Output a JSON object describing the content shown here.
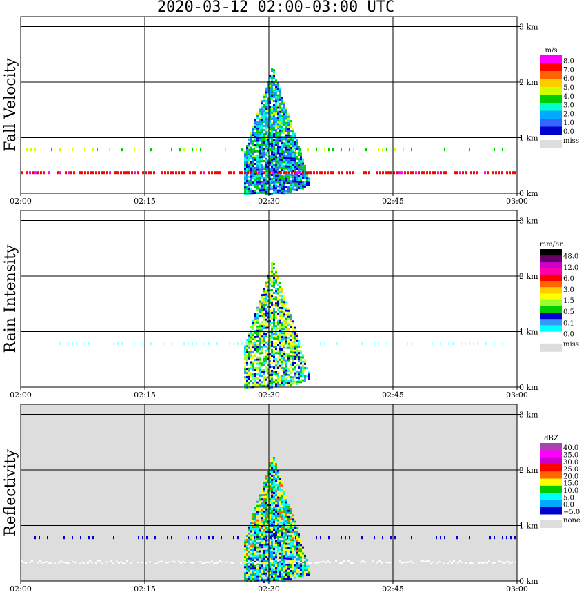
{
  "title": "2020-03-12   02:00-03:00 UTC",
  "x_tick_labels": [
    "02:00",
    "02:15",
    "02:30",
    "02:45",
    "03:00"
  ],
  "y_tick_labels": [
    "0 km",
    "1 km",
    "2 km",
    "3 km"
  ],
  "chart_data": [
    {
      "type": "heatmap",
      "ylabel": "Fall Velocity",
      "xlim": [
        "02:00",
        "03:00"
      ],
      "ylim_km": [
        0,
        3
      ],
      "grid": true,
      "background": "#ffffff",
      "colorbar": {
        "unit": "m/s",
        "labels": [
          "8.0",
          "7.0",
          "6.0",
          "5.0",
          "4.0",
          "3.0",
          "2.0",
          "1.0",
          "0.0"
        ],
        "colors": [
          "#ff00ff",
          "#ff0000",
          "#ff6600",
          "#ffcc00",
          "#ccff00",
          "#00cc00",
          "#00ffcc",
          "#00aaff",
          "#3366ff",
          "#0000cc"
        ],
        "missing_label": "miss",
        "missing_color": "#dddddd"
      },
      "features": [
        {
          "name": "precipitation-echo",
          "start": "02:27",
          "end": "02:35",
          "top_km": 2.3,
          "dominant_range": "1.0-3.0"
        },
        {
          "name": "interference-line",
          "height_km": 0.37,
          "value": "7.0-8.0"
        },
        {
          "name": "sparse-echo-line",
          "height_km": 0.78,
          "value": "3.0-5.0"
        }
      ]
    },
    {
      "type": "heatmap",
      "ylabel": "Rain Intensity",
      "xlim": [
        "02:00",
        "03:00"
      ],
      "ylim_km": [
        0,
        3
      ],
      "grid": true,
      "background": "#ffffff",
      "colorbar": {
        "unit": "mm/hr",
        "labels": [
          "48.0",
          "12.0",
          "6.0",
          "3.0",
          "1.5",
          "0.5",
          "0.1",
          "0.0"
        ],
        "colors": [
          "#000000",
          "#660066",
          "#cc00cc",
          "#ff00aa",
          "#ff0000",
          "#ff6600",
          "#ffcc00",
          "#ffff00",
          "#99ff33",
          "#00cc00",
          "#0000cc",
          "#3399ff",
          "#00ffff",
          "#ffffff"
        ],
        "missing_label": "miss",
        "missing_color": "#dddddd"
      },
      "features": [
        {
          "name": "precipitation-echo",
          "start": "02:27",
          "end": "02:35",
          "top_km": 2.3,
          "dominant_range": "0.1-0.5"
        },
        {
          "name": "sparse-echo-line",
          "height_km": 0.78,
          "value": "0.1"
        }
      ]
    },
    {
      "type": "heatmap",
      "ylabel": "Reflectivity",
      "xlim": [
        "02:00",
        "03:00"
      ],
      "ylim_km": [
        0,
        3
      ],
      "grid": true,
      "background": "#dddddd",
      "colorbar": {
        "unit": "dBZ",
        "labels": [
          "40.0",
          "35.0",
          "30.0",
          "25.0",
          "20.0",
          "15.0",
          "10.0",
          "5.0",
          "0.0",
          "−5.0"
        ],
        "colors": [
          "#aa44aa",
          "#ff00ff",
          "#cc00cc",
          "#ff0000",
          "#ff6600",
          "#ffff00",
          "#00cc00",
          "#00ffff",
          "#00aaff",
          "#0000cc"
        ],
        "missing_label": "none",
        "missing_color": "#dddddd"
      },
      "features": [
        {
          "name": "precipitation-echo",
          "start": "02:27",
          "end": "02:35",
          "top_km": 2.3,
          "dominant_range": "5.0-15.0"
        },
        {
          "name": "sparse-echo-line",
          "height_km": 0.78,
          "value": "−5.0"
        },
        {
          "name": "white-noise-line",
          "height_km": 0.35,
          "value": "none"
        }
      ]
    }
  ]
}
